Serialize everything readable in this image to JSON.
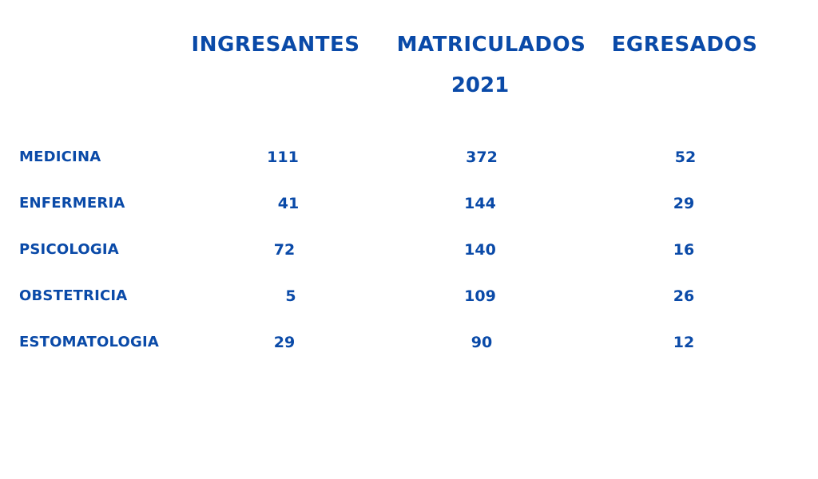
{
  "headers": {
    "ingresantes": "INGRESANTES",
    "matriculados": "MATRICULADOS",
    "egresados": "EGRESADOS",
    "year": "2021"
  },
  "rows": [
    {
      "label": "MEDICINA",
      "ingresantes": "111",
      "matriculados": "372",
      "egresados": "52"
    },
    {
      "label": "ENFERMERIA",
      "ingresantes": "41",
      "matriculados": "144",
      "egresados": "29"
    },
    {
      "label": "PSICOLOGIA",
      "ingresantes": "72",
      "matriculados": "140",
      "egresados": "16"
    },
    {
      "label": "OBSTETRICIA",
      "ingresantes": "5",
      "matriculados": "109",
      "egresados": "26"
    },
    {
      "label": "ESTOMATOLOGIA",
      "ingresantes": "29",
      "matriculados": "90",
      "egresados": "12"
    }
  ],
  "colors": {
    "text": "#0a4aa8",
    "background": "#ffffff"
  }
}
